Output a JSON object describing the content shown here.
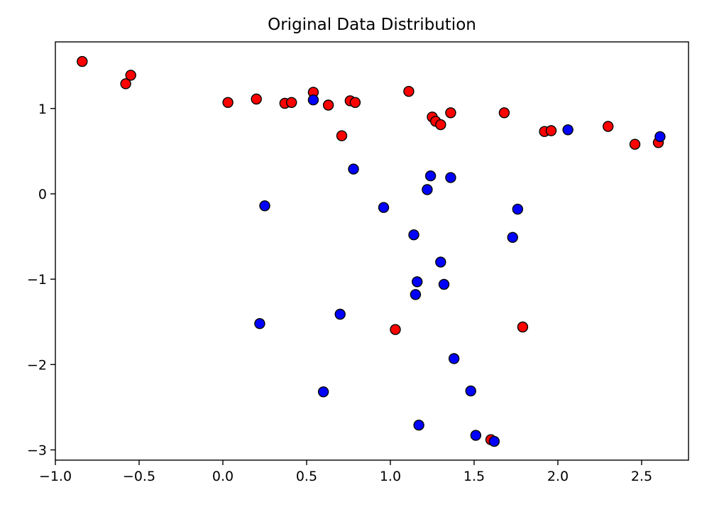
{
  "chart_data": {
    "type": "scatter",
    "title": "Original Data Distribution",
    "xlabel": "",
    "ylabel": "",
    "xlim": [
      -1.0,
      2.78
    ],
    "ylim": [
      -3.12,
      1.78
    ],
    "xticks": [
      -1.0,
      -0.5,
      0.0,
      0.5,
      1.0,
      1.5,
      2.0,
      2.5
    ],
    "xtick_labels": [
      "−1.0",
      "−0.5",
      "0.0",
      "0.5",
      "1.0",
      "1.5",
      "2.0",
      "2.5"
    ],
    "yticks": [
      -3,
      -2,
      -1,
      0,
      1
    ],
    "ytick_labels": [
      "−3",
      "−2",
      "−1",
      "0",
      "1"
    ],
    "grid": false,
    "series": [
      {
        "color": "#ff0000",
        "points": [
          [
            -0.84,
            1.55
          ],
          [
            -0.58,
            1.29
          ],
          [
            -0.55,
            1.39
          ],
          [
            0.03,
            1.07
          ],
          [
            0.2,
            1.11
          ],
          [
            0.37,
            1.06
          ],
          [
            0.41,
            1.07
          ],
          [
            0.54,
            1.19
          ],
          [
            0.63,
            1.04
          ],
          [
            0.71,
            0.68
          ],
          [
            0.76,
            1.09
          ],
          [
            0.79,
            1.07
          ],
          [
            1.11,
            1.2
          ],
          [
            1.25,
            0.9
          ],
          [
            1.27,
            0.85
          ],
          [
            1.3,
            0.81
          ],
          [
            1.36,
            0.95
          ],
          [
            1.68,
            0.95
          ],
          [
            1.92,
            0.73
          ],
          [
            1.96,
            0.74
          ],
          [
            2.3,
            0.79
          ],
          [
            2.46,
            0.58
          ],
          [
            2.6,
            0.6
          ],
          [
            1.03,
            -1.59
          ],
          [
            1.79,
            -1.56
          ],
          [
            1.6,
            -2.88
          ]
        ]
      },
      {
        "color": "#0000ff",
        "points": [
          [
            0.54,
            1.1
          ],
          [
            2.06,
            0.75
          ],
          [
            2.61,
            0.67
          ],
          [
            0.78,
            0.29
          ],
          [
            1.24,
            0.21
          ],
          [
            1.36,
            0.19
          ],
          [
            1.22,
            0.05
          ],
          [
            0.25,
            -0.14
          ],
          [
            0.96,
            -0.16
          ],
          [
            1.76,
            -0.18
          ],
          [
            1.14,
            -0.48
          ],
          [
            1.73,
            -0.51
          ],
          [
            1.3,
            -0.8
          ],
          [
            1.16,
            -1.03
          ],
          [
            1.32,
            -1.06
          ],
          [
            1.15,
            -1.18
          ],
          [
            0.7,
            -1.41
          ],
          [
            0.22,
            -1.52
          ],
          [
            1.38,
            -1.93
          ],
          [
            0.6,
            -2.32
          ],
          [
            1.48,
            -2.31
          ],
          [
            1.17,
            -2.71
          ],
          [
            1.51,
            -2.83
          ],
          [
            1.62,
            -2.9
          ]
        ]
      }
    ]
  }
}
